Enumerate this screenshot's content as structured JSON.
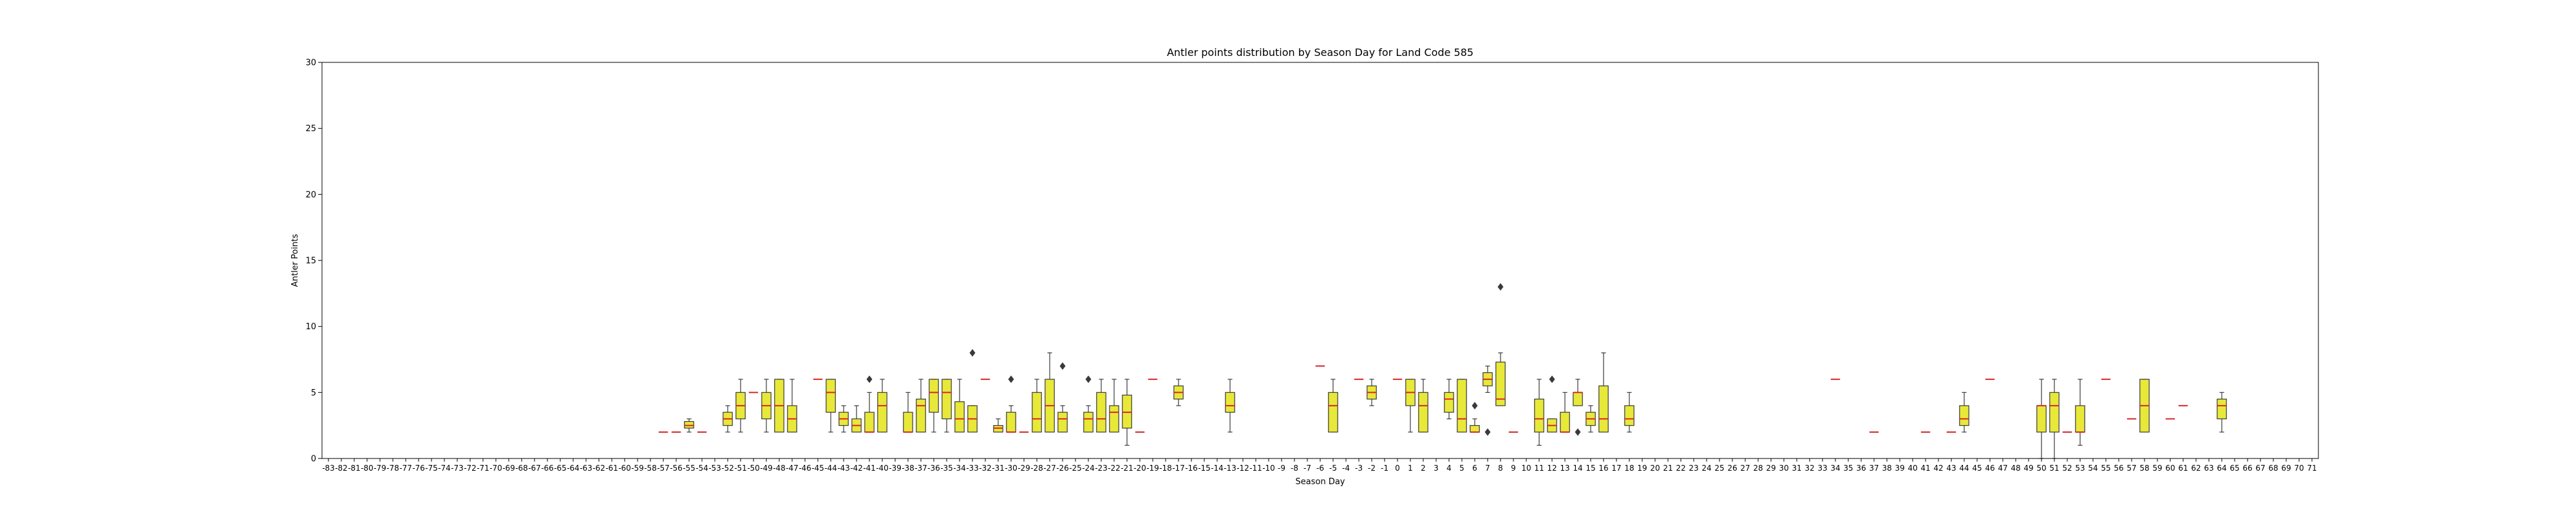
{
  "chart_data": {
    "type": "box",
    "title": "Antler points distribution by Season Day for Land Code 585",
    "xlabel": "Season Day",
    "ylabel": "Antler Points",
    "ylim": [
      0,
      30
    ],
    "yticks": [
      0,
      5,
      10,
      15,
      20,
      25,
      30
    ],
    "x_range": [
      -83,
      71
    ],
    "grid": false,
    "colors": {
      "box_fill": "#e8e839",
      "box_edge": "#3a3a3a",
      "median": "#d62728",
      "outlier": "#3a3a3a"
    },
    "boxes": [
      {
        "day": -57,
        "q1": 2,
        "median": 2,
        "q3": 2,
        "whislo": 2,
        "whishi": 2,
        "outliers": []
      },
      {
        "day": -56,
        "q1": 2,
        "median": 2,
        "q3": 2,
        "whislo": 2,
        "whishi": 2,
        "outliers": []
      },
      {
        "day": -55,
        "q1": 2.3,
        "median": 2.5,
        "q3": 2.8,
        "whislo": 2,
        "whishi": 3,
        "outliers": []
      },
      {
        "day": -54,
        "q1": 2,
        "median": 2,
        "q3": 2,
        "whislo": 2,
        "whishi": 2,
        "outliers": []
      },
      {
        "day": -52,
        "q1": 2.5,
        "median": 3,
        "q3": 3.5,
        "whislo": 2,
        "whishi": 4,
        "outliers": []
      },
      {
        "day": -51,
        "q1": 3,
        "median": 4,
        "q3": 5,
        "whislo": 2,
        "whishi": 6,
        "outliers": []
      },
      {
        "day": -50,
        "q1": 5,
        "median": 5,
        "q3": 5,
        "whislo": 5,
        "whishi": 5,
        "outliers": []
      },
      {
        "day": -49,
        "q1": 3,
        "median": 4,
        "q3": 5,
        "whislo": 2,
        "whishi": 6,
        "outliers": []
      },
      {
        "day": -48,
        "q1": 2,
        "median": 4,
        "q3": 6,
        "whislo": 2,
        "whishi": 6,
        "outliers": []
      },
      {
        "day": -47,
        "q1": 2,
        "median": 3,
        "q3": 4,
        "whislo": 2,
        "whishi": 6,
        "outliers": []
      },
      {
        "day": -45,
        "q1": 6,
        "median": 6,
        "q3": 6,
        "whislo": 6,
        "whishi": 6,
        "outliers": []
      },
      {
        "day": -44,
        "q1": 3.5,
        "median": 5,
        "q3": 6,
        "whislo": 2,
        "whishi": 6,
        "outliers": []
      },
      {
        "day": -43,
        "q1": 2.5,
        "median": 3,
        "q3": 3.5,
        "whislo": 2,
        "whishi": 4,
        "outliers": []
      },
      {
        "day": -42,
        "q1": 2,
        "median": 2.5,
        "q3": 3,
        "whislo": 2,
        "whishi": 4,
        "outliers": []
      },
      {
        "day": -41,
        "q1": 2,
        "median": 2,
        "q3": 3.5,
        "whislo": 2,
        "whishi": 5,
        "outliers": [
          6
        ]
      },
      {
        "day": -40,
        "q1": 2,
        "median": 4,
        "q3": 5,
        "whislo": 2,
        "whishi": 6,
        "outliers": []
      },
      {
        "day": -38,
        "q1": 2,
        "median": 2,
        "q3": 3.5,
        "whislo": 2,
        "whishi": 5,
        "outliers": []
      },
      {
        "day": -37,
        "q1": 2,
        "median": 4,
        "q3": 4.5,
        "whislo": 2,
        "whishi": 6,
        "outliers": []
      },
      {
        "day": -36,
        "q1": 3.5,
        "median": 5,
        "q3": 6,
        "whislo": 2,
        "whishi": 6,
        "outliers": []
      },
      {
        "day": -35,
        "q1": 3,
        "median": 5,
        "q3": 6,
        "whislo": 2,
        "whishi": 6,
        "outliers": []
      },
      {
        "day": -34,
        "q1": 2,
        "median": 3,
        "q3": 4.3,
        "whislo": 2,
        "whishi": 6,
        "outliers": []
      },
      {
        "day": -33,
        "q1": 2,
        "median": 3,
        "q3": 4,
        "whislo": 2,
        "whishi": 4,
        "outliers": [
          8
        ]
      },
      {
        "day": -32,
        "q1": 6,
        "median": 6,
        "q3": 6,
        "whislo": 6,
        "whishi": 6,
        "outliers": []
      },
      {
        "day": -31,
        "q1": 2,
        "median": 2.3,
        "q3": 2.5,
        "whislo": 2,
        "whishi": 3,
        "outliers": []
      },
      {
        "day": -30,
        "q1": 2,
        "median": 2,
        "q3": 3.5,
        "whislo": 2,
        "whishi": 4,
        "outliers": [
          6
        ]
      },
      {
        "day": -29,
        "q1": 2,
        "median": 2,
        "q3": 2,
        "whislo": 2,
        "whishi": 2,
        "outliers": []
      },
      {
        "day": -28,
        "q1": 2,
        "median": 3,
        "q3": 5,
        "whislo": 2,
        "whishi": 6,
        "outliers": []
      },
      {
        "day": -27,
        "q1": 2,
        "median": 4,
        "q3": 6,
        "whislo": 2,
        "whishi": 8,
        "outliers": []
      },
      {
        "day": -26,
        "q1": 2,
        "median": 3,
        "q3": 3.5,
        "whislo": 2,
        "whishi": 4,
        "outliers": [
          7
        ]
      },
      {
        "day": -24,
        "q1": 2,
        "median": 3,
        "q3": 3.5,
        "whislo": 2,
        "whishi": 4,
        "outliers": [
          6
        ]
      },
      {
        "day": -23,
        "q1": 2,
        "median": 3,
        "q3": 5,
        "whislo": 2,
        "whishi": 6,
        "outliers": []
      },
      {
        "day": -22,
        "q1": 2,
        "median": 3.5,
        "q3": 4,
        "whislo": 2,
        "whishi": 6,
        "outliers": []
      },
      {
        "day": -21,
        "q1": 2.3,
        "median": 3.5,
        "q3": 4.8,
        "whislo": 1,
        "whishi": 6,
        "outliers": []
      },
      {
        "day": -20,
        "q1": 2,
        "median": 2,
        "q3": 2,
        "whislo": 2,
        "whishi": 2,
        "outliers": []
      },
      {
        "day": -19,
        "q1": 6,
        "median": 6,
        "q3": 6,
        "whislo": 6,
        "whishi": 6,
        "outliers": []
      },
      {
        "day": -17,
        "q1": 4.5,
        "median": 5,
        "q3": 5.5,
        "whislo": 4,
        "whishi": 6,
        "outliers": []
      },
      {
        "day": -13,
        "q1": 3.5,
        "median": 4,
        "q3": 5,
        "whislo": 2,
        "whishi": 6,
        "outliers": []
      },
      {
        "day": -6,
        "q1": 7,
        "median": 7,
        "q3": 7,
        "whislo": 7,
        "whishi": 7,
        "outliers": []
      },
      {
        "day": -5,
        "q1": 2,
        "median": 4,
        "q3": 5,
        "whislo": 2,
        "whishi": 6,
        "outliers": []
      },
      {
        "day": -3,
        "q1": 6,
        "median": 6,
        "q3": 6,
        "whislo": 6,
        "whishi": 6,
        "outliers": []
      },
      {
        "day": -2,
        "q1": 4.5,
        "median": 5,
        "q3": 5.5,
        "whislo": 4,
        "whishi": 6,
        "outliers": []
      },
      {
        "day": 0,
        "q1": 6,
        "median": 6,
        "q3": 6,
        "whislo": 6,
        "whishi": 6,
        "outliers": []
      },
      {
        "day": 1,
        "q1": 4,
        "median": 5,
        "q3": 6,
        "whislo": 2,
        "whishi": 6,
        "outliers": []
      },
      {
        "day": 2,
        "q1": 2,
        "median": 4,
        "q3": 5,
        "whislo": 2,
        "whishi": 6,
        "outliers": []
      },
      {
        "day": 4,
        "q1": 3.5,
        "median": 4.5,
        "q3": 5,
        "whislo": 3,
        "whishi": 6,
        "outliers": []
      },
      {
        "day": 5,
        "q1": 2,
        "median": 3,
        "q3": 6,
        "whislo": 2,
        "whishi": 6,
        "outliers": []
      },
      {
        "day": 6,
        "q1": 2,
        "median": 2,
        "q3": 2.5,
        "whislo": 2,
        "whishi": 3,
        "outliers": [
          4
        ]
      },
      {
        "day": 7,
        "q1": 5.5,
        "median": 6,
        "q3": 6.5,
        "whislo": 5,
        "whishi": 7,
        "outliers": [
          2
        ]
      },
      {
        "day": 8,
        "q1": 4,
        "median": 4.5,
        "q3": 7.3,
        "whislo": 4,
        "whishi": 8,
        "outliers": [
          13
        ]
      },
      {
        "day": 9,
        "q1": 2,
        "median": 2,
        "q3": 2,
        "whislo": 2,
        "whishi": 2,
        "outliers": []
      },
      {
        "day": 11,
        "q1": 2,
        "median": 3,
        "q3": 4.5,
        "whislo": 1,
        "whishi": 6,
        "outliers": []
      },
      {
        "day": 12,
        "q1": 2,
        "median": 2.5,
        "q3": 3,
        "whislo": 2,
        "whishi": 3,
        "outliers": [
          6
        ]
      },
      {
        "day": 13,
        "q1": 2,
        "median": 2,
        "q3": 3.5,
        "whislo": 2,
        "whishi": 5,
        "outliers": []
      },
      {
        "day": 14,
        "q1": 4,
        "median": 5,
        "q3": 5,
        "whislo": 4,
        "whishi": 6,
        "outliers": [
          2
        ]
      },
      {
        "day": 15,
        "q1": 2.5,
        "median": 3,
        "q3": 3.5,
        "whislo": 2,
        "whishi": 4,
        "outliers": []
      },
      {
        "day": 16,
        "q1": 2,
        "median": 3,
        "q3": 5.5,
        "whislo": 2,
        "whishi": 8,
        "outliers": []
      },
      {
        "day": 18,
        "q1": 2.5,
        "median": 3,
        "q3": 4,
        "whislo": 2,
        "whishi": 5,
        "outliers": []
      },
      {
        "day": 34,
        "q1": 6,
        "median": 6,
        "q3": 6,
        "whislo": 6,
        "whishi": 6,
        "outliers": []
      },
      {
        "day": 37,
        "q1": 2,
        "median": 2,
        "q3": 2,
        "whislo": 2,
        "whishi": 2,
        "outliers": []
      },
      {
        "day": 41,
        "q1": 2,
        "median": 2,
        "q3": 2,
        "whislo": 2,
        "whishi": 2,
        "outliers": []
      },
      {
        "day": 43,
        "q1": 2,
        "median": 2,
        "q3": 2,
        "whislo": 2,
        "whishi": 2,
        "outliers": []
      },
      {
        "day": 44,
        "q1": 2.5,
        "median": 3,
        "q3": 4,
        "whislo": 2,
        "whishi": 5,
        "outliers": []
      },
      {
        "day": 46,
        "q1": 6,
        "median": 6,
        "q3": 6,
        "whislo": 6,
        "whishi": 6,
        "outliers": []
      },
      {
        "day": 50,
        "q1": 2,
        "median": 4,
        "q3": 4,
        "whislo": 0,
        "whishi": 6,
        "outliers": []
      },
      {
        "day": 51,
        "q1": 2,
        "median": 4,
        "q3": 5,
        "whislo": 0,
        "whishi": 6,
        "outliers": []
      },
      {
        "day": 52,
        "q1": 2,
        "median": 2,
        "q3": 2,
        "whislo": 2,
        "whishi": 2,
        "outliers": []
      },
      {
        "day": 53,
        "q1": 2,
        "median": 2,
        "q3": 4,
        "whislo": 1,
        "whishi": 6,
        "outliers": []
      },
      {
        "day": 55,
        "q1": 6,
        "median": 6,
        "q3": 6,
        "whislo": 6,
        "whishi": 6,
        "outliers": []
      },
      {
        "day": 57,
        "q1": 3,
        "median": 3,
        "q3": 3,
        "whislo": 3,
        "whishi": 3,
        "outliers": []
      },
      {
        "day": 58,
        "q1": 2,
        "median": 4,
        "q3": 6,
        "whislo": 2,
        "whishi": 6,
        "outliers": []
      },
      {
        "day": 60,
        "q1": 3,
        "median": 3,
        "q3": 3,
        "whislo": 3,
        "whishi": 3,
        "outliers": []
      },
      {
        "day": 61,
        "q1": 4,
        "median": 4,
        "q3": 4,
        "whislo": 4,
        "whishi": 4,
        "outliers": []
      },
      {
        "day": 64,
        "q1": 3,
        "median": 4,
        "q3": 4.5,
        "whislo": 2,
        "whishi": 5,
        "outliers": []
      }
    ]
  }
}
